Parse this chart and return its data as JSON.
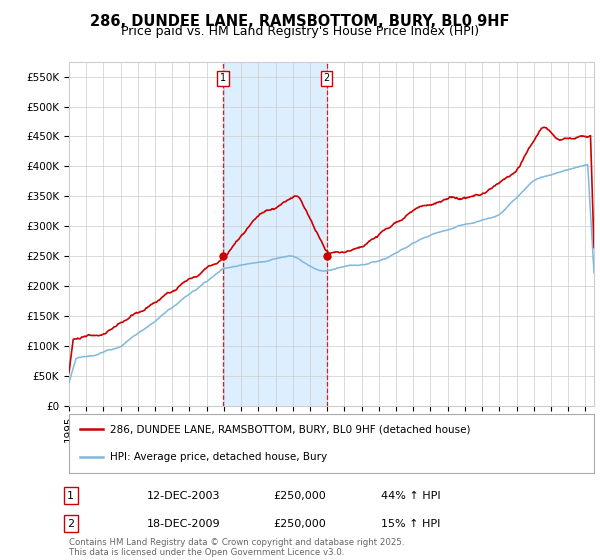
{
  "title": "286, DUNDEE LANE, RAMSBOTTOM, BURY, BL0 9HF",
  "subtitle": "Price paid vs. HM Land Registry's House Price Index (HPI)",
  "ylim": [
    0,
    575000
  ],
  "yticks": [
    0,
    50000,
    100000,
    150000,
    200000,
    250000,
    300000,
    350000,
    400000,
    450000,
    500000,
    550000
  ],
  "ytick_labels": [
    "£0",
    "£50K",
    "£100K",
    "£150K",
    "£200K",
    "£250K",
    "£300K",
    "£350K",
    "£400K",
    "£450K",
    "£500K",
    "£550K"
  ],
  "xlim_start": 1995,
  "xlim_end": 2025.5,
  "xticks": [
    1995,
    1996,
    1997,
    1998,
    1999,
    2000,
    2001,
    2002,
    2003,
    2004,
    2005,
    2006,
    2007,
    2008,
    2009,
    2010,
    2011,
    2012,
    2013,
    2014,
    2015,
    2016,
    2017,
    2018,
    2019,
    2020,
    2021,
    2022,
    2023,
    2024,
    2025
  ],
  "sale1_x": 2003.96,
  "sale1_y": 250000,
  "sale1_label": "1",
  "sale1_date": "12-DEC-2003",
  "sale1_price": "£250,000",
  "sale1_hpi": "44% ↑ HPI",
  "sale2_x": 2009.96,
  "sale2_y": 250000,
  "sale2_label": "2",
  "sale2_date": "18-DEC-2009",
  "sale2_price": "£250,000",
  "sale2_hpi": "15% ↑ HPI",
  "red_line_color": "#cc0000",
  "blue_line_color": "#80b8dc",
  "highlight_color": "#ddeeff",
  "vline_color": "#cc0000",
  "legend_label_red": "286, DUNDEE LANE, RAMSBOTTOM, BURY, BL0 9HF (detached house)",
  "legend_label_blue": "HPI: Average price, detached house, Bury",
  "footer": "Contains HM Land Registry data © Crown copyright and database right 2025.\nThis data is licensed under the Open Government Licence v3.0.",
  "title_fontsize": 10.5,
  "subtitle_fontsize": 9,
  "tick_fontsize": 7.5,
  "background_color": "#ffffff",
  "grid_color": "#cccccc"
}
